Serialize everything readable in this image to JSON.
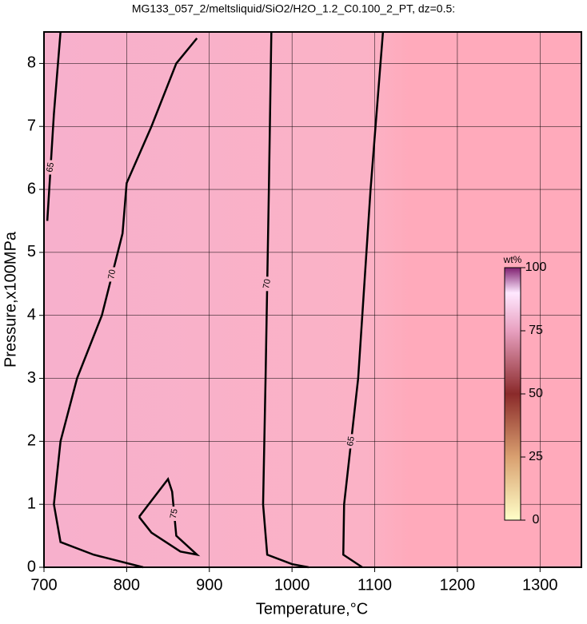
{
  "chart_data": {
    "type": "contour",
    "title": "MG133_057_2/meltsliquid/SiO2/H2O_1.2_C0.100_2_PT, dz=0.5:",
    "x_label": "Temperature,°C",
    "y_label": "Pressure,x100MPa",
    "xlim": [
      700,
      1350
    ],
    "ylim": [
      0,
      8.5
    ],
    "xticks": [
      700,
      800,
      900,
      1000,
      1100,
      1200,
      1300
    ],
    "yticks": [
      0,
      1,
      2,
      3,
      4,
      5,
      6,
      7,
      8
    ],
    "grid": true,
    "contours": [
      {
        "level": 70,
        "x": [
          885,
          860,
          830,
          800,
          795,
          770,
          740,
          720,
          712,
          720,
          760,
          820
        ],
        "y": [
          8.4,
          8.0,
          7.0,
          6.1,
          5.3,
          4.0,
          3.0,
          2.0,
          1.0,
          0.4,
          0.2,
          0.0
        ]
      },
      {
        "level": 75,
        "x": [
          815,
          850,
          855,
          860,
          885,
          865,
          830,
          815
        ],
        "y": [
          0.8,
          1.4,
          1.2,
          0.5,
          0.2,
          0.25,
          0.55,
          0.8
        ]
      },
      {
        "level": 70,
        "x": [
          975,
          972,
          968,
          965,
          970,
          1000,
          1020
        ],
        "y": [
          8.5,
          6.0,
          3.0,
          1.0,
          0.2,
          0.05,
          0.0
        ]
      },
      {
        "level": 65,
        "x": [
          1110,
          1095,
          1080,
          1063,
          1062,
          1085
        ],
        "y": [
          8.5,
          6.0,
          3.0,
          1.0,
          0.2,
          0.0
        ]
      },
      {
        "level": 65,
        "x": [
          704,
          712,
          720
        ],
        "y": [
          5.5,
          7.2,
          8.5
        ]
      }
    ],
    "colorbar": {
      "label": "wt%",
      "lim": [
        0,
        100
      ],
      "ticks": [
        0,
        25,
        50,
        75,
        100
      ]
    }
  }
}
